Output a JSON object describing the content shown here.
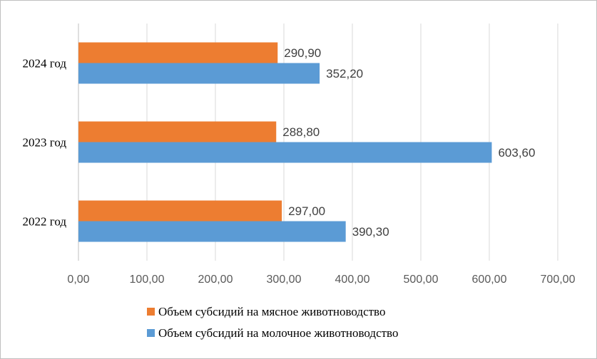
{
  "chart_data": {
    "type": "bar",
    "orientation": "horizontal",
    "categories": [
      "2022 год",
      "2023 год",
      "2024 год"
    ],
    "series": [
      {
        "name": "Объем субсидий на мясное животноводство",
        "values": [
          297.0,
          288.8,
          290.9
        ],
        "labels": [
          "297,00",
          "288,80",
          "290,90"
        ],
        "color": "#ED7D31"
      },
      {
        "name": "Объем субсидий на молочное животноводство",
        "values": [
          390.3,
          603.6,
          352.2
        ],
        "labels": [
          "390,30",
          "603,60",
          "352,20"
        ],
        "color": "#5B9BD5"
      }
    ],
    "xlim": [
      0,
      700
    ],
    "xticks": [
      0,
      100,
      200,
      300,
      400,
      500,
      600,
      700
    ],
    "xtick_labels": [
      "0,00",
      "100,00",
      "200,00",
      "300,00",
      "400,00",
      "500,00",
      "600,00",
      "700,00"
    ],
    "grid": true,
    "legend_position": "bottom"
  }
}
